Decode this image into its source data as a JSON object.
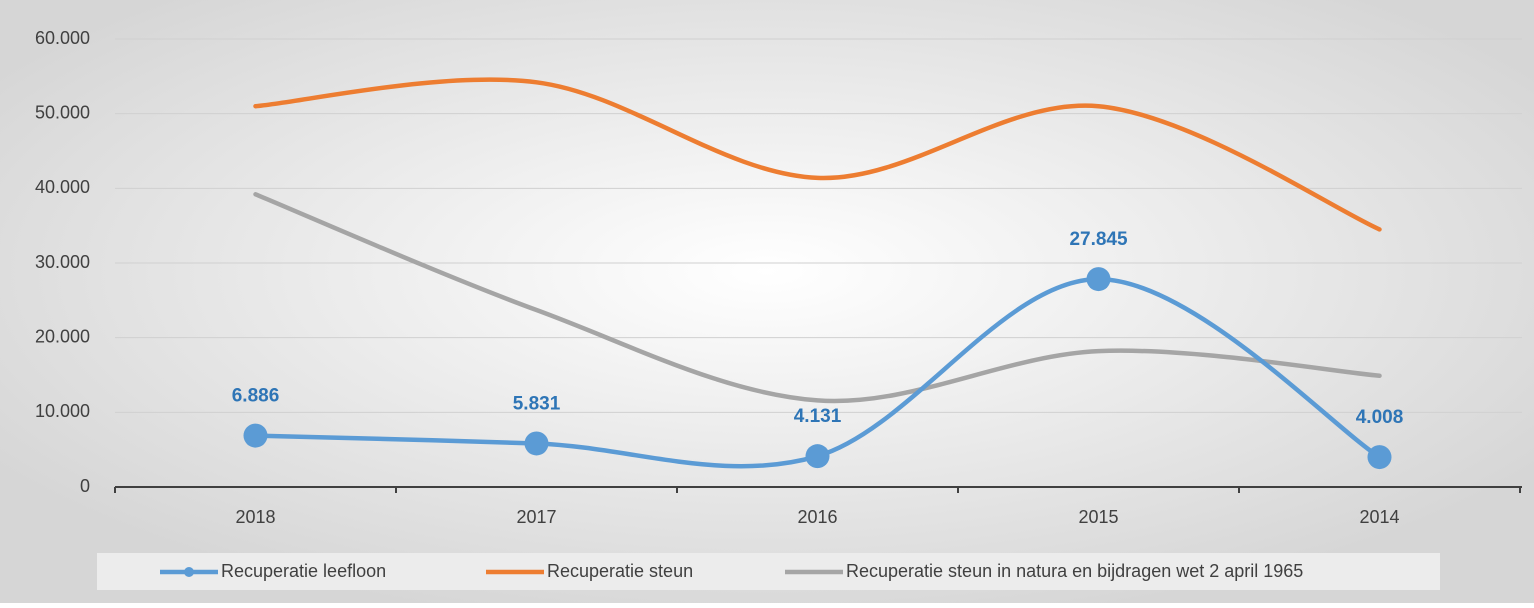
{
  "chart_data": {
    "type": "line",
    "categories": [
      "2018",
      "2017",
      "2016",
      "2015",
      "2014"
    ],
    "series": [
      {
        "name": "Recuperatie leefloon",
        "color": "#5b9bd5",
        "values": [
          6886,
          5831,
          4131,
          27845,
          4008
        ],
        "value_labels": [
          "6.886",
          "5.831",
          "4.131",
          "27.845",
          "4.008"
        ],
        "label_color": "#2e75b6",
        "markers": true
      },
      {
        "name": "Recuperatie steun",
        "color": "#ed7d31",
        "values": [
          51000,
          54200,
          41400,
          51000,
          34500
        ]
      },
      {
        "name": "Recuperatie steun in natura en bijdragen wet 2 april 1965",
        "color": "#a5a5a5",
        "values": [
          39200,
          23700,
          11600,
          18200,
          14900
        ]
      }
    ],
    "ylim": [
      0,
      60000
    ],
    "yticks": [
      0,
      {
        "value": 10000,
        "label": "10.000"
      },
      {
        "value": 20000,
        "label": "20.000"
      },
      {
        "value": 30000,
        "label": "30.000"
      },
      {
        "value": 40000,
        "label": "40.000"
      },
      {
        "value": 50000,
        "label": "50.000"
      },
      {
        "value": 60000,
        "label": "60.000"
      }
    ],
    "grid": true,
    "smooth": true,
    "legend": "bottom"
  }
}
